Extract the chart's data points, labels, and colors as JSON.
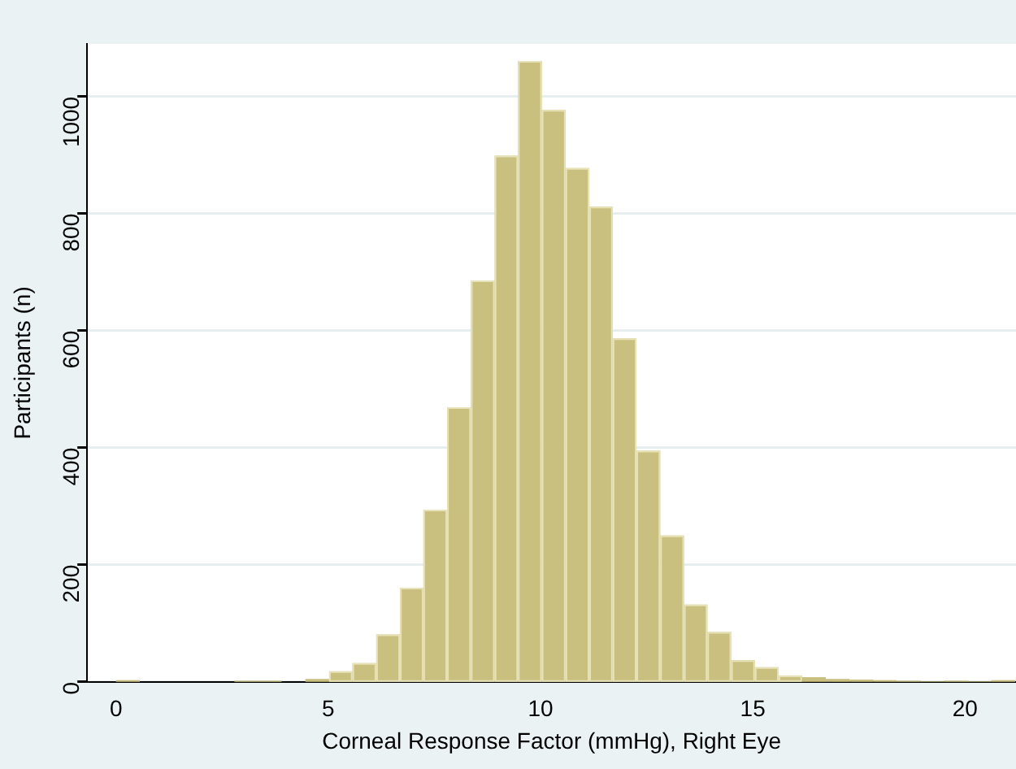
{
  "chart_data": {
    "type": "histogram",
    "xlabel": "Corneal Response Factor (mmHg), Right Eye",
    "ylabel": "Participants (n)",
    "bins": [
      0,
      0.56,
      2.79,
      3.34,
      3.9,
      4.46,
      5.02,
      5.57,
      6.13,
      6.69,
      7.24,
      7.8,
      8.36,
      8.92,
      9.47,
      10.03,
      10.59,
      11.15,
      11.7,
      12.26,
      12.82,
      13.38,
      13.93,
      14.49,
      15.05,
      15.61,
      16.16,
      16.72,
      17.28,
      17.84,
      18.39,
      18.95,
      19.51,
      20.07,
      20.62,
      21.18
    ],
    "values": [
      3,
      0,
      2,
      2,
      0,
      5,
      18,
      32,
      81,
      161,
      294,
      469,
      686,
      899,
      1061,
      977,
      878,
      812,
      587,
      395,
      250,
      132,
      85,
      37,
      25,
      11,
      8,
      5,
      4,
      3,
      2,
      1,
      2,
      1,
      3
    ],
    "color": "#c9bf7e",
    "xlim": [
      -0.68,
      21.2
    ],
    "xticks": [
      0,
      5,
      10,
      15,
      20
    ],
    "ylim": [
      0,
      1090
    ],
    "yticks": [
      0,
      200,
      400,
      600,
      800,
      1000
    ],
    "grid": "y",
    "legend": false
  }
}
